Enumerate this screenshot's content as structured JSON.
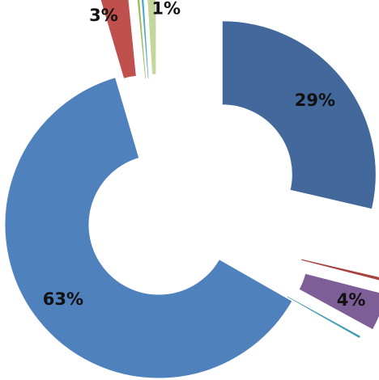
{
  "chart_data": {
    "type": "pie",
    "variant": "exploded-donut",
    "legend": "none",
    "slices": [
      {
        "value": 29,
        "label": "29%",
        "color": "#43689B"
      },
      {
        "value": 0.4,
        "label": "",
        "color": "#A8423F"
      },
      {
        "value": 4,
        "label": "4%",
        "color": "#7D5E97"
      },
      {
        "value": 0.3,
        "label": "",
        "color": "#3C9DB5"
      },
      {
        "value": 63,
        "label": "63%",
        "color": "#4F81BD"
      },
      {
        "value": 3,
        "label": "3%",
        "color": "#C0504D"
      },
      {
        "value": 0.3,
        "label": "",
        "color": "#9BBB59"
      },
      {
        "value": 0.3,
        "label": "",
        "color": "#4BACC6"
      },
      {
        "value": 1,
        "label": "1%",
        "color": "#C3D69B"
      }
    ]
  }
}
